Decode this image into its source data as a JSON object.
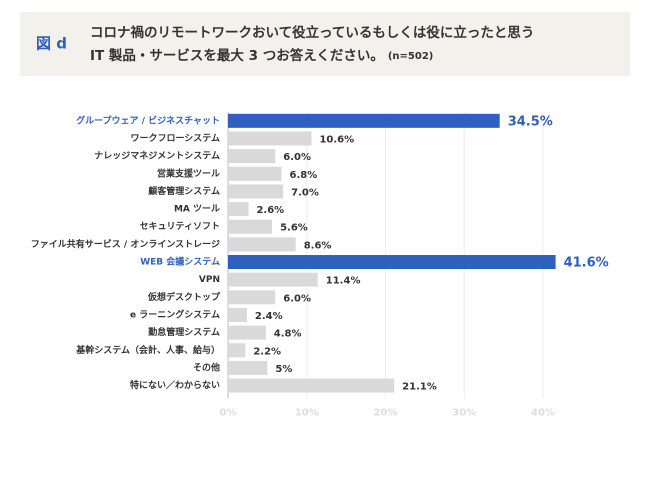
{
  "chart_data": {
    "type": "barh",
    "figure_label": "図 d",
    "title": [
      "コロナ禍のリモートワークおいて役立っているもしくは役に立ったと思う",
      "IT 製品・サービスを最大 3 つお答えください。"
    ],
    "note": "(n=502)",
    "categories": [
      "グループウェア / ビジネスチャット",
      "ワークフローシステム",
      "ナレッジマネジメントシステム",
      "営業支援ツール",
      "顧客管理システム",
      "MA ツール",
      "セキュリティソフト",
      "ファイル共有サービス / オンラインストレージ",
      "WEB 会議システム",
      "VPN",
      "仮想デスクトップ",
      "e ラーニングシステム",
      "勤怠管理システム",
      "基幹システム（会計、人事、給与）",
      "その他",
      "特にない／わからない"
    ],
    "values": [
      34.5,
      10.6,
      6.0,
      6.8,
      7.0,
      2.6,
      5.6,
      8.6,
      41.6,
      11.4,
      6.0,
      2.4,
      4.8,
      2.2,
      5,
      21.1
    ],
    "value_labels": [
      "34.5%",
      "10.6%",
      "6.0%",
      "6.8%",
      "7.0%",
      "2.6%",
      "5.6%",
      "8.6%",
      "41.6%",
      "11.4%",
      "6.0%",
      "2.4%",
      "4.8%",
      "2.2%",
      "5%",
      "21.1%"
    ],
    "color": "#d9d9d9",
    "highlight_color": "#2f5fbf",
    "highlighted": [
      0,
      8
    ],
    "xlim": [
      0,
      40
    ],
    "xticks": [
      {
        "value": 0,
        "label": "0%"
      },
      {
        "value": 10,
        "label": "10%"
      },
      {
        "value": 20,
        "label": "20%"
      },
      {
        "value": 30,
        "label": "30%"
      },
      {
        "value": 40,
        "label": "40%"
      }
    ],
    "grid": true
  }
}
